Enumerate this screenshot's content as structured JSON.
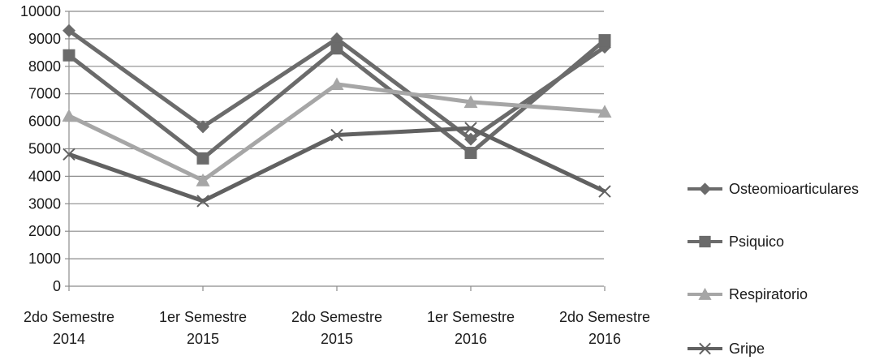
{
  "chart_data": {
    "type": "line",
    "title": "",
    "xlabel": "",
    "ylabel": "",
    "ylim": [
      0,
      10000
    ],
    "yticks": [
      0,
      1000,
      2000,
      3000,
      4000,
      5000,
      6000,
      7000,
      8000,
      9000,
      10000
    ],
    "grid": true,
    "legend_position": "right",
    "categories": [
      [
        "2do Semestre",
        "2014"
      ],
      [
        "1er Semestre",
        "2015"
      ],
      [
        "2do Semestre",
        "2015"
      ],
      [
        "1er Semestre",
        "2016"
      ],
      [
        "2do Semestre",
        "2016"
      ]
    ],
    "series": [
      {
        "name": "Osteomioarticulares",
        "marker": "diamond",
        "color": "#6b6b6b",
        "values": [
          9300,
          5800,
          9000,
          5350,
          8700
        ]
      },
      {
        "name": "Psiquico",
        "marker": "square",
        "color": "#6b6b6b",
        "values": [
          8400,
          4650,
          8650,
          4850,
          8950
        ]
      },
      {
        "name": "Respiratorio",
        "marker": "triangle",
        "color": "#a6a6a6",
        "values": [
          6200,
          3850,
          7350,
          6700,
          6350
        ]
      },
      {
        "name": "Gripe",
        "marker": "x",
        "color": "#616161",
        "values": [
          4800,
          3100,
          5500,
          5750,
          3450
        ]
      }
    ]
  }
}
